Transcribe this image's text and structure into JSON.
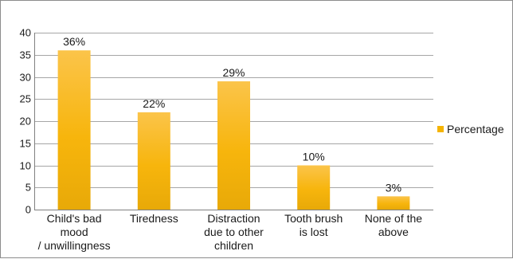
{
  "chart_data": {
    "type": "bar",
    "title": "",
    "xlabel": "",
    "ylabel": "",
    "ylim": [
      0,
      40
    ],
    "yticks": [
      0,
      5,
      10,
      15,
      20,
      25,
      30,
      35,
      40
    ],
    "grid": true,
    "legend_position": "right",
    "categories": [
      [
        "Child's bad",
        "mood",
        "/ unwillingness"
      ],
      [
        "Tiredness"
      ],
      [
        "Distraction",
        "due to other",
        "children"
      ],
      [
        "Tooth brush",
        "is lost"
      ],
      [
        "None of the",
        "above"
      ]
    ],
    "series": [
      {
        "name": "Percentage",
        "values": [
          36,
          22,
          29,
          10,
          3
        ],
        "labels": [
          "36%",
          "22%",
          "29%",
          "10%",
          "3%"
        ],
        "color": "#f5b400"
      }
    ]
  }
}
